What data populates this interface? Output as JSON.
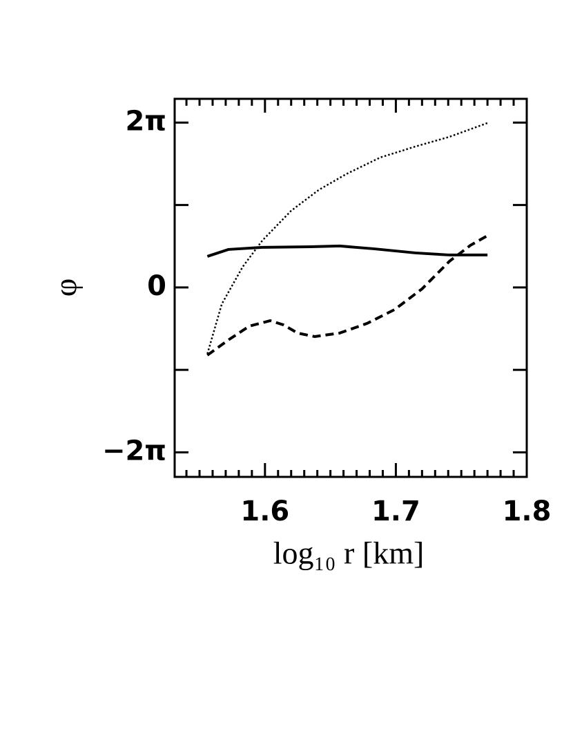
{
  "chart_data": {
    "type": "line",
    "x_label": "log₁₀ r [km]",
    "y_label": "φ",
    "xlim": [
      1.531,
      1.8
    ],
    "ylim": [
      -7.22,
      7.19
    ],
    "xticks": [
      1.6,
      1.7,
      1.8
    ],
    "xminorticks": [
      1.54,
      1.55,
      1.56,
      1.57,
      1.58,
      1.59,
      1.61,
      1.62,
      1.63,
      1.64,
      1.65,
      1.66,
      1.67,
      1.68,
      1.69,
      1.71,
      1.72,
      1.73,
      1.74,
      1.75,
      1.76,
      1.77,
      1.78,
      1.79
    ],
    "yticks": [
      {
        "value": -6.2832,
        "label": "−2π"
      },
      0,
      {
        "value": 6.2832,
        "label": "2π"
      }
    ],
    "yminorticks": [
      -3.1416,
      3.1416
    ],
    "series": [
      {
        "color": "#000000",
        "style": "solid",
        "x": [
          1.556,
          1.572,
          1.598,
          1.635,
          1.657,
          1.683,
          1.715,
          1.741,
          1.77
        ],
        "values": [
          1.185,
          1.449,
          1.528,
          1.554,
          1.581,
          1.475,
          1.317,
          1.238,
          1.238
        ]
      },
      {
        "color": "#000000",
        "style": "dashed",
        "x": [
          1.556,
          1.572,
          1.588,
          1.604,
          1.614,
          1.625,
          1.638,
          1.657,
          1.678,
          1.699,
          1.72,
          1.741,
          1.757,
          1.77
        ],
        "values": [
          -2.582,
          -2.002,
          -1.475,
          -1.265,
          -1.423,
          -1.739,
          -1.871,
          -1.739,
          -1.37,
          -0.843,
          -0.053,
          1.001,
          1.607,
          1.976
        ]
      },
      {
        "color": "#000000",
        "style": "dotted",
        "x": [
          1.556,
          1.567,
          1.583,
          1.598,
          1.62,
          1.641,
          1.662,
          1.688,
          1.715,
          1.741,
          1.77
        ],
        "values": [
          -2.529,
          -0.632,
          0.79,
          1.791,
          2.924,
          3.715,
          4.32,
          4.953,
          5.374,
          5.743,
          6.27
        ]
      }
    ]
  }
}
